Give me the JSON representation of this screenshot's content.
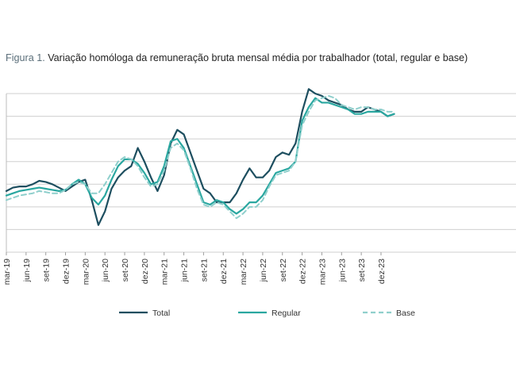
{
  "figure": {
    "prefix": "Figura 1.",
    "caption": "Variação homóloga da remuneração bruta mensal média por trabalhador (total, regular e base)"
  },
  "chart_data": {
    "type": "line",
    "title": "Figura 1. Variação homóloga da remuneração bruta mensal média por trabalhador (total, regular e base)",
    "xlabel": "",
    "ylabel": "",
    "x_tick_labels": [
      "mar-19",
      "jun-19",
      "set-19",
      "dez-19",
      "mar-20",
      "jun-20",
      "set-20",
      "dez-20",
      "mar-21",
      "jun-21",
      "set-21",
      "dez-21",
      "mar-22",
      "jun-22",
      "set-22",
      "dez-22",
      "mar-23",
      "jun-23",
      "set-23",
      "dez-23"
    ],
    "x": [
      "2019-03",
      "2019-04",
      "2019-05",
      "2019-06",
      "2019-07",
      "2019-08",
      "2019-09",
      "2019-10",
      "2019-11",
      "2019-12",
      "2020-01",
      "2020-02",
      "2020-03",
      "2020-04",
      "2020-05",
      "2020-06",
      "2020-07",
      "2020-08",
      "2020-09",
      "2020-10",
      "2020-11",
      "2020-12",
      "2021-01",
      "2021-02",
      "2021-03",
      "2021-04",
      "2021-05",
      "2021-06",
      "2021-07",
      "2021-08",
      "2021-09",
      "2021-10",
      "2021-11",
      "2021-12",
      "2022-01",
      "2022-02",
      "2022-03",
      "2022-04",
      "2022-05",
      "2022-06",
      "2022-07",
      "2022-08",
      "2022-09",
      "2022-10",
      "2022-11",
      "2022-12",
      "2023-01",
      "2023-02",
      "2023-03",
      "2023-04",
      "2023-05",
      "2023-06",
      "2023-07",
      "2023-08",
      "2023-09",
      "2023-10",
      "2023-11",
      "2023-12",
      "2024-01",
      "2024-02"
    ],
    "y_axis_tick_labels_visible": false,
    "ylim": [
      0,
      7
    ],
    "y_gridlines": [
      0,
      1,
      2,
      3,
      4,
      5,
      6,
      7
    ],
    "grid": true,
    "legend_position": "bottom",
    "series": [
      {
        "name": "Total",
        "color": "#1d4e5f",
        "style": "solid",
        "values": [
          2.7,
          2.85,
          2.9,
          2.9,
          3.0,
          3.15,
          3.1,
          3.0,
          2.85,
          2.7,
          2.9,
          3.1,
          3.2,
          2.3,
          1.2,
          1.8,
          2.8,
          3.3,
          3.6,
          3.8,
          4.6,
          4.0,
          3.3,
          2.7,
          3.4,
          4.8,
          5.4,
          5.2,
          4.4,
          3.6,
          2.8,
          2.6,
          2.2,
          2.2,
          2.2,
          2.6,
          3.2,
          3.7,
          3.3,
          3.3,
          3.6,
          4.2,
          4.4,
          4.3,
          4.8,
          6.2,
          7.2,
          7.0,
          6.9,
          6.7,
          6.6,
          6.5,
          6.3,
          6.2,
          6.2,
          6.4,
          6.3,
          6.2,
          6.0,
          6.1
        ]
      },
      {
        "name": "Regular",
        "color": "#2aa7a0",
        "style": "solid",
        "values": [
          2.5,
          2.6,
          2.7,
          2.75,
          2.8,
          2.85,
          2.8,
          2.75,
          2.7,
          2.75,
          3.0,
          3.2,
          3.0,
          2.4,
          2.1,
          2.5,
          3.2,
          3.8,
          4.1,
          4.1,
          3.9,
          3.5,
          3.0,
          3.1,
          3.8,
          4.9,
          5.0,
          4.6,
          3.8,
          3.0,
          2.2,
          2.1,
          2.3,
          2.2,
          1.9,
          1.7,
          1.9,
          2.2,
          2.2,
          2.5,
          3.0,
          3.5,
          3.6,
          3.7,
          4.0,
          5.8,
          6.4,
          6.8,
          6.6,
          6.6,
          6.5,
          6.4,
          6.3,
          6.1,
          6.1,
          6.2,
          6.2,
          6.2,
          6.0,
          6.1
        ]
      },
      {
        "name": "Base",
        "color": "#8fcfcc",
        "style": "dashed",
        "values": [
          2.3,
          2.4,
          2.5,
          2.55,
          2.6,
          2.7,
          2.65,
          2.6,
          2.6,
          2.75,
          3.0,
          3.1,
          3.0,
          2.6,
          2.6,
          3.0,
          3.5,
          4.0,
          4.2,
          4.1,
          3.8,
          3.3,
          2.9,
          3.0,
          3.6,
          4.6,
          4.8,
          4.5,
          3.7,
          2.8,
          2.1,
          2.0,
          2.2,
          2.1,
          1.8,
          1.5,
          1.7,
          2.0,
          2.0,
          2.3,
          2.9,
          3.4,
          3.5,
          3.6,
          4.0,
          5.6,
          6.2,
          6.7,
          6.8,
          6.9,
          6.8,
          6.5,
          6.4,
          6.3,
          6.4,
          6.4,
          6.3,
          6.3,
          6.2,
          6.2
        ]
      }
    ]
  }
}
